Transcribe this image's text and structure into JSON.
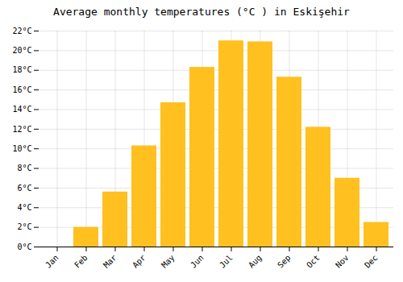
{
  "chart_data": {
    "type": "bar",
    "title": "Average monthly temperatures (°C ) in Eskişehir",
    "categories": [
      "Jan",
      "Feb",
      "Mar",
      "Apr",
      "May",
      "Jun",
      "Jul",
      "Aug",
      "Sep",
      "Oct",
      "Nov",
      "Dec"
    ],
    "values": [
      0,
      2,
      5.6,
      10.3,
      14.7,
      18.3,
      21.0,
      20.9,
      17.3,
      12.2,
      7.0,
      2.5
    ],
    "color": "#FFC020",
    "ylim": [
      0,
      22
    ],
    "yticks": [
      {
        "value": 0,
        "label": "0°C"
      },
      {
        "value": 2,
        "label": "2°C"
      },
      {
        "value": 4,
        "label": "4°C"
      },
      {
        "value": 6,
        "label": "6°C"
      },
      {
        "value": 8,
        "label": "8°C"
      },
      {
        "value": 10,
        "label": "10°C"
      },
      {
        "value": 12,
        "label": "12°C"
      },
      {
        "value": 14,
        "label": "14°C"
      },
      {
        "value": 16,
        "label": "16°C"
      },
      {
        "value": 18,
        "label": "18°C"
      },
      {
        "value": 20,
        "label": "20°C"
      },
      {
        "value": 22,
        "label": "22°C"
      }
    ],
    "grid": true
  }
}
